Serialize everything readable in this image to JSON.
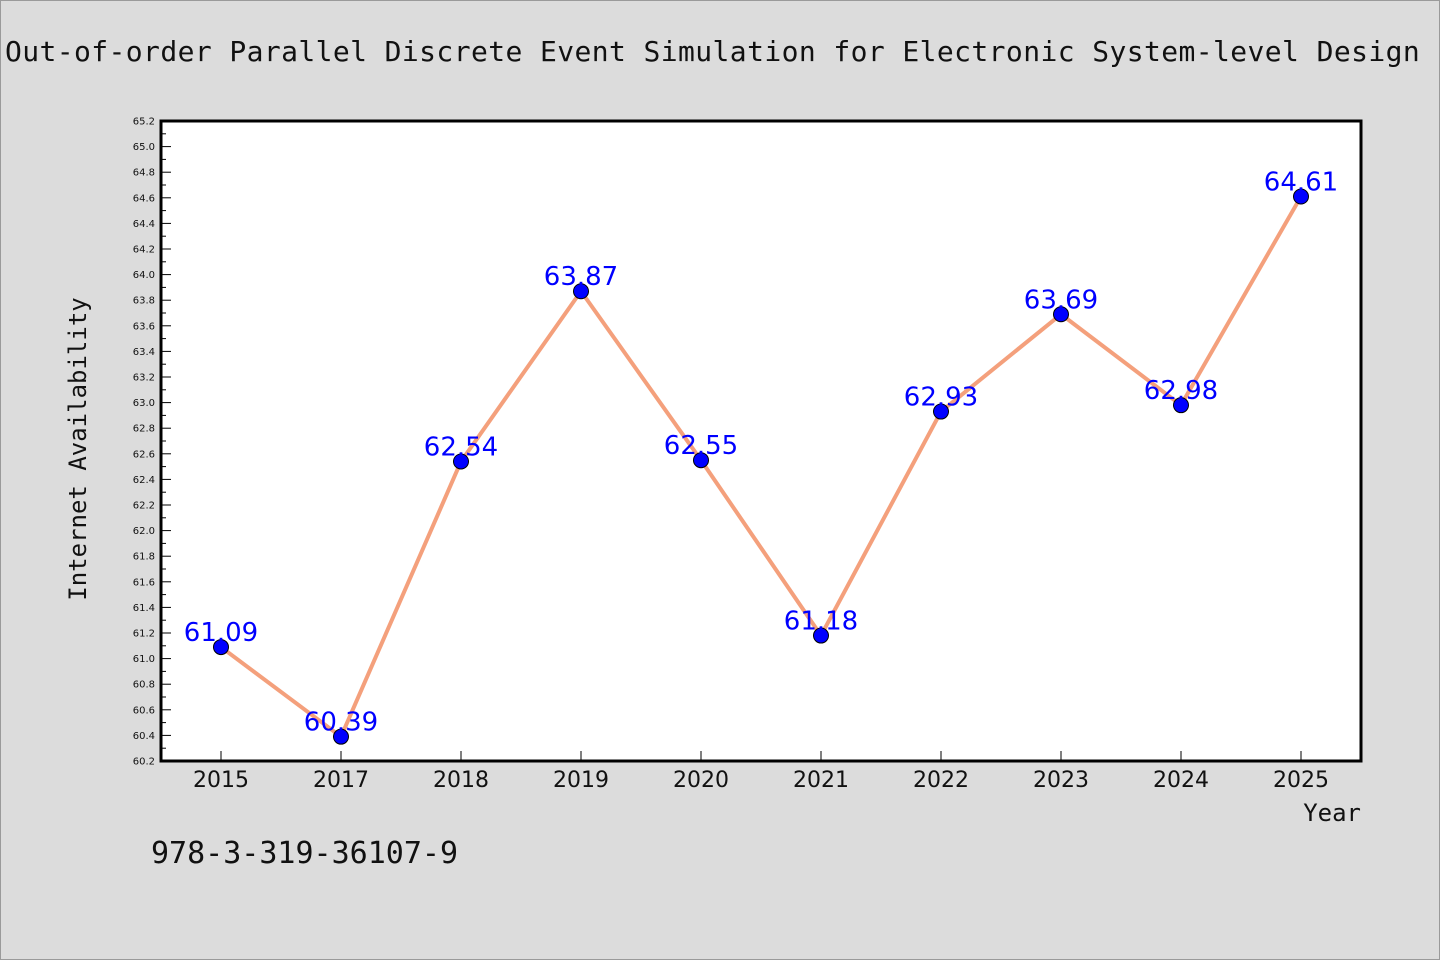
{
  "figure": {
    "title": "Out-of-order Parallel Discrete Event Simulation for Electronic System-level Design",
    "footnote": "978-3-319-36107-9",
    "background_color": "#dcdcdc",
    "plot_background_color": "#ffffff"
  },
  "chart_data": {
    "type": "line",
    "title": "Out-of-order Parallel Discrete Event Simulation for Electronic System-level Design",
    "xlabel": "Year",
    "ylabel": "Internet Availability",
    "categories": [
      "2015",
      "2017",
      "2018",
      "2019",
      "2020",
      "2021",
      "2022",
      "2023",
      "2024",
      "2025"
    ],
    "series": [
      {
        "values": [
          61.09,
          60.39,
          62.54,
          63.87,
          62.55,
          61.18,
          62.93,
          63.69,
          62.98,
          64.61
        ],
        "line_color": "#f4a07c",
        "marker_color": "#0000ff"
      }
    ],
    "data_labels": [
      "61.09",
      "60.39",
      "62.54",
      "63.87",
      "62.55",
      "61.18",
      "62.93",
      "63.69",
      "62.98",
      "64.61"
    ],
    "ylim": [
      60.2,
      65.2
    ],
    "y_tick_step": 0.2,
    "grid": false,
    "legend": "none"
  }
}
